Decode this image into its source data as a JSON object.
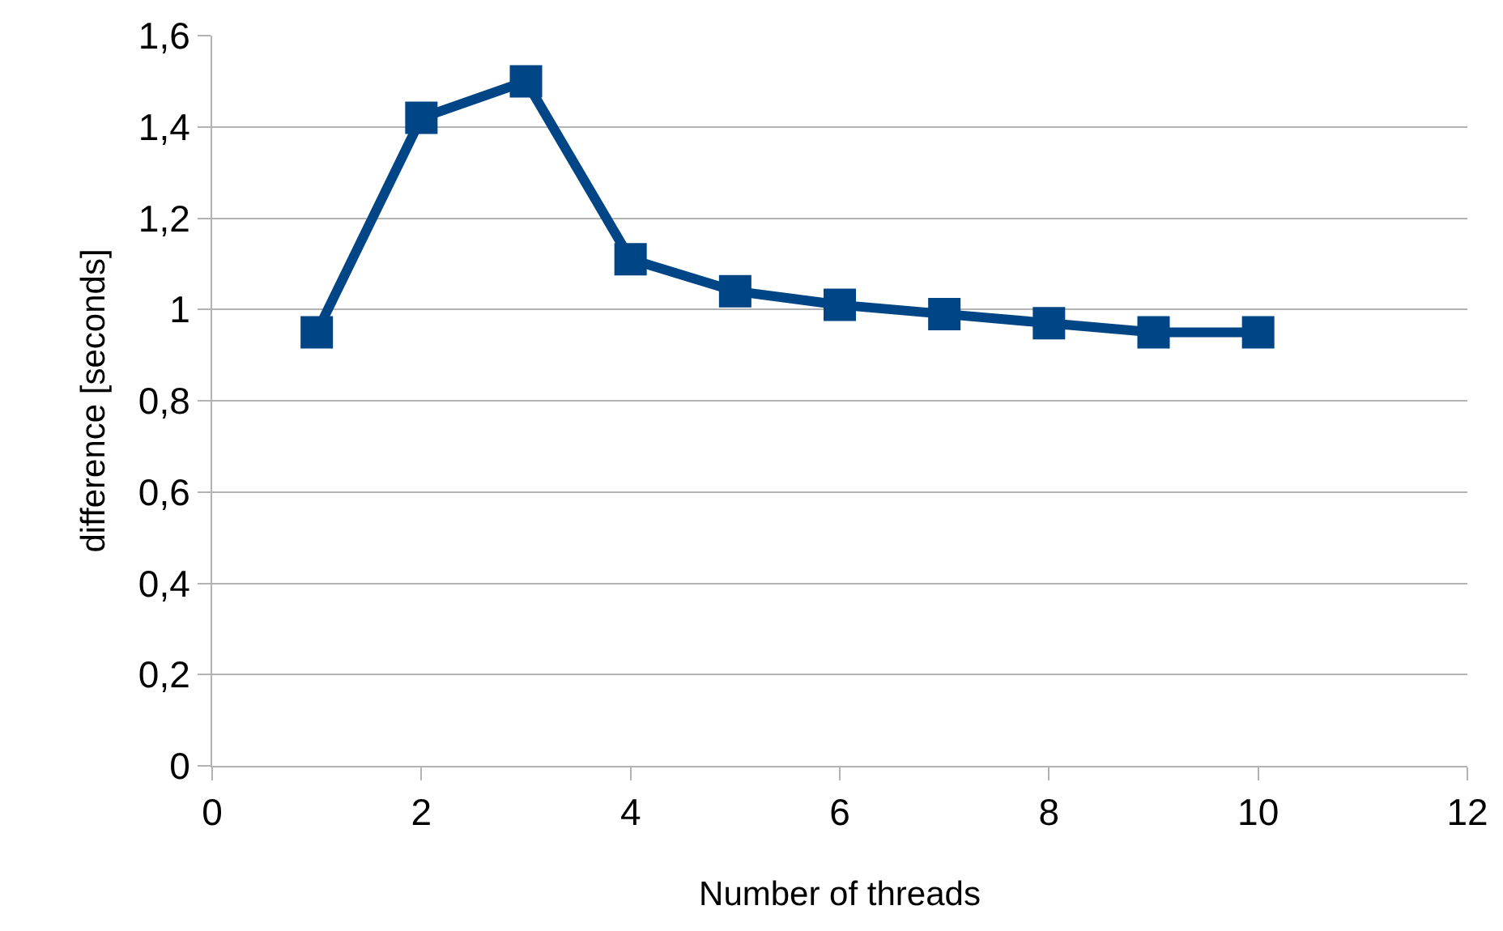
{
  "chart_data": {
    "type": "line",
    "xlabel": "Number of threads",
    "ylabel": "difference [seconds]",
    "x": [
      1,
      2,
      3,
      4,
      5,
      6,
      7,
      8,
      9,
      10
    ],
    "series": [
      {
        "color": "#004586",
        "values": [
          0.95,
          1.42,
          1.5,
          1.11,
          1.04,
          1.01,
          0.99,
          0.97,
          0.95,
          0.95
        ]
      }
    ],
    "xlim": [
      0,
      12
    ],
    "xticks": [
      0,
      2,
      4,
      6,
      8,
      10,
      12
    ],
    "ylim": [
      0,
      1.6
    ],
    "yticks": [
      0,
      {
        "value": 0.2,
        "label": "0,2"
      },
      {
        "value": 0.4,
        "label": "0,4"
      },
      {
        "value": 0.6,
        "label": "0,6"
      },
      {
        "value": 0.8,
        "label": "0,8"
      },
      1,
      {
        "value": 1.2,
        "label": "1,2"
      },
      {
        "value": 1.4,
        "label": "1,4"
      },
      {
        "value": 1.6,
        "label": "1,6"
      }
    ],
    "grid": "y",
    "legend": false,
    "marker": "square",
    "line_style": "solid"
  }
}
